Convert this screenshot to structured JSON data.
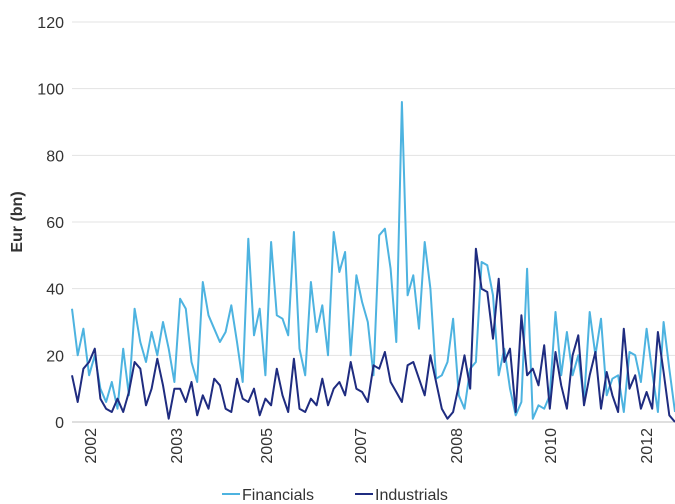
{
  "chart_data": {
    "type": "line",
    "title": "",
    "xlabel": "",
    "ylabel": "Eur (bn)",
    "ylim": [
      0,
      120
    ],
    "yticks": [
      0,
      20,
      40,
      60,
      80,
      100,
      120
    ],
    "xlim": [
      2002,
      2012.6
    ],
    "xtick_labels": [
      "2002",
      "2003",
      "2005",
      "2007",
      "2008",
      "2010",
      "2012"
    ],
    "grid": true,
    "legend_position": "bottom-center",
    "series": [
      {
        "name": "Financials",
        "color": "#4db3e0",
        "x": [
          2002.0,
          2002.1,
          2002.2,
          2002.3,
          2002.4,
          2002.5,
          2002.6,
          2002.7,
          2002.8,
          2002.9,
          2003.0,
          2003.1,
          2003.2,
          2003.3,
          2003.4,
          2003.5,
          2003.6,
          2003.7,
          2003.8,
          2003.9,
          2004.0,
          2004.1,
          2004.2,
          2004.3,
          2004.4,
          2004.5,
          2004.6,
          2004.7,
          2004.8,
          2004.9,
          2005.0,
          2005.1,
          2005.2,
          2005.3,
          2005.4,
          2005.5,
          2005.6,
          2005.7,
          2005.8,
          2005.9,
          2006.0,
          2006.1,
          2006.2,
          2006.3,
          2006.4,
          2006.5,
          2006.6,
          2006.7,
          2006.8,
          2006.9,
          2007.0,
          2007.1,
          2007.2,
          2007.3,
          2007.4,
          2007.5,
          2007.6,
          2007.7,
          2007.8,
          2007.9,
          2008.0,
          2008.1,
          2008.2,
          2008.3,
          2008.4,
          2008.5,
          2008.6,
          2008.7,
          2008.8,
          2008.9,
          2009.0,
          2009.1,
          2009.2,
          2009.3,
          2009.4,
          2009.5,
          2009.6,
          2009.7,
          2009.8,
          2009.9,
          2010.0,
          2010.1,
          2010.2,
          2010.3,
          2010.4,
          2010.5,
          2010.6,
          2010.7,
          2010.8,
          2010.9,
          2011.0,
          2011.1,
          2011.2,
          2011.3,
          2011.4,
          2011.5,
          2011.6,
          2011.7,
          2011.8,
          2011.9,
          2012.0,
          2012.1,
          2012.2,
          2012.3,
          2012.4,
          2012.5,
          2012.6
        ],
        "values": [
          34,
          20,
          28,
          14,
          20,
          10,
          6,
          12,
          4,
          22,
          8,
          34,
          24,
          18,
          27,
          20,
          30,
          22,
          12,
          37,
          34,
          18,
          12,
          42,
          32,
          28,
          24,
          27,
          35,
          24,
          12,
          55,
          26,
          34,
          14,
          54,
          32,
          31,
          26,
          57,
          22,
          14,
          42,
          27,
          35,
          20,
          57,
          45,
          51,
          20,
          44,
          36,
          30,
          14,
          56,
          58,
          46,
          24,
          96,
          38,
          44,
          28,
          54,
          40,
          13,
          14,
          18,
          31,
          8,
          4,
          16,
          18,
          48,
          47,
          38,
          14,
          22,
          10,
          2,
          6,
          46,
          1,
          5,
          4,
          8,
          33,
          14,
          27,
          14,
          20,
          6,
          33,
          20,
          31,
          8,
          13,
          14,
          3,
          21,
          20,
          12,
          28,
          15,
          3,
          30,
          16,
          3
        ]
      },
      {
        "name": "Industrials",
        "color": "#1f2c80",
        "x": [
          2002.0,
          2002.1,
          2002.2,
          2002.3,
          2002.4,
          2002.5,
          2002.6,
          2002.7,
          2002.8,
          2002.9,
          2003.0,
          2003.1,
          2003.2,
          2003.3,
          2003.4,
          2003.5,
          2003.6,
          2003.7,
          2003.8,
          2003.9,
          2004.0,
          2004.1,
          2004.2,
          2004.3,
          2004.4,
          2004.5,
          2004.6,
          2004.7,
          2004.8,
          2004.9,
          2005.0,
          2005.1,
          2005.2,
          2005.3,
          2005.4,
          2005.5,
          2005.6,
          2005.7,
          2005.8,
          2005.9,
          2006.0,
          2006.1,
          2006.2,
          2006.3,
          2006.4,
          2006.5,
          2006.6,
          2006.7,
          2006.8,
          2006.9,
          2007.0,
          2007.1,
          2007.2,
          2007.3,
          2007.4,
          2007.5,
          2007.6,
          2007.7,
          2007.8,
          2007.9,
          2008.0,
          2008.1,
          2008.2,
          2008.3,
          2008.4,
          2008.5,
          2008.6,
          2008.7,
          2008.8,
          2008.9,
          2009.0,
          2009.1,
          2009.2,
          2009.3,
          2009.4,
          2009.5,
          2009.6,
          2009.7,
          2009.8,
          2009.9,
          2010.0,
          2010.1,
          2010.2,
          2010.3,
          2010.4,
          2010.5,
          2010.6,
          2010.7,
          2010.8,
          2010.9,
          2011.0,
          2011.1,
          2011.2,
          2011.3,
          2011.4,
          2011.5,
          2011.6,
          2011.7,
          2011.8,
          2011.9,
          2012.0,
          2012.1,
          2012.2,
          2012.3,
          2012.4,
          2012.5,
          2012.6
        ],
        "values": [
          14,
          6,
          16,
          18,
          22,
          7,
          4,
          3,
          7,
          3,
          9,
          18,
          16,
          5,
          10,
          19,
          11,
          1,
          10,
          10,
          6,
          12,
          2,
          8,
          4,
          13,
          11,
          4,
          3,
          13,
          7,
          6,
          10,
          2,
          7,
          5,
          16,
          8,
          3,
          19,
          4,
          3,
          7,
          5,
          13,
          5,
          10,
          12,
          8,
          18,
          10,
          9,
          6,
          17,
          16,
          21,
          12,
          9,
          6,
          17,
          18,
          13,
          8,
          20,
          12,
          4,
          1,
          3,
          11,
          20,
          10,
          52,
          40,
          39,
          25,
          43,
          18,
          22,
          3,
          32,
          14,
          16,
          11,
          23,
          4,
          21,
          11,
          4,
          20,
          26,
          5,
          14,
          21,
          4,
          15,
          8,
          3,
          28,
          10,
          14,
          4,
          9,
          4,
          27,
          15,
          2,
          0
        ]
      }
    ]
  }
}
